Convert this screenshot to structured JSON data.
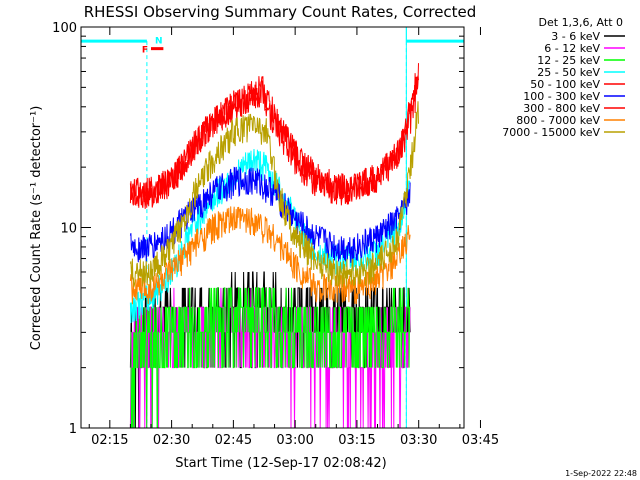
{
  "chart_data": {
    "type": "line",
    "title": "RHESSI Observing Summary Count Rates, Corrected",
    "xlabel": "Start Time (12-Sep-17 02:08:42)",
    "ylabel": "Corrected Count Rate (s⁻¹ detector⁻¹)",
    "yscale": "log",
    "ylim": [
      1,
      100
    ],
    "xlim_minutes": [
      8,
      101
    ],
    "x_tick_labels": [
      "02:15",
      "02:30",
      "02:45",
      "03:00",
      "03:15",
      "03:30",
      "03:45"
    ],
    "x_ticks_minutes": [
      15,
      30,
      45,
      60,
      75,
      90,
      105
    ],
    "y_tick_labels": [
      "1",
      "10",
      "100"
    ],
    "y_ticks": [
      1,
      10,
      100
    ],
    "legend_header": "Det 1,3,6, Att 0",
    "legend_placement": "right",
    "grid": false,
    "series": [
      {
        "name": "3 - 6 keV",
        "color": "#000000",
        "points": [
          [
            20,
            2
          ],
          [
            25,
            4
          ],
          [
            30,
            4
          ],
          [
            40,
            4
          ],
          [
            50,
            5
          ],
          [
            60,
            4
          ],
          [
            70,
            4
          ],
          [
            80,
            4
          ],
          [
            88,
            4
          ]
        ]
      },
      {
        "name": "6 - 12 keV",
        "color": "#ff00ff",
        "points": [
          [
            20,
            2
          ],
          [
            25,
            2.5
          ],
          [
            30,
            3
          ],
          [
            40,
            3.5
          ],
          [
            50,
            3.5
          ],
          [
            60,
            2.5
          ],
          [
            70,
            2.5
          ],
          [
            80,
            2
          ],
          [
            88,
            3
          ]
        ]
      },
      {
        "name": "12 - 25 keV",
        "color": "#00ff00",
        "points": [
          [
            20,
            2
          ],
          [
            25,
            2.5
          ],
          [
            30,
            3
          ],
          [
            40,
            3.5
          ],
          [
            50,
            4
          ],
          [
            60,
            3
          ],
          [
            70,
            3
          ],
          [
            80,
            3
          ],
          [
            88,
            4
          ]
        ]
      },
      {
        "name": "25 - 50 keV",
        "color": "#00ffff",
        "points": [
          [
            20,
            4
          ],
          [
            25,
            4.5
          ],
          [
            30,
            6
          ],
          [
            35,
            10
          ],
          [
            40,
            14
          ],
          [
            45,
            18
          ],
          [
            50,
            22
          ],
          [
            53,
            20
          ],
          [
            60,
            11
          ],
          [
            65,
            7.5
          ],
          [
            70,
            7
          ],
          [
            75,
            7
          ],
          [
            80,
            7.5
          ],
          [
            85,
            10
          ],
          [
            88,
            17
          ]
        ]
      },
      {
        "name": "50 - 100 keV",
        "color": "#ff0000",
        "points": [
          [
            20,
            15
          ],
          [
            25,
            15
          ],
          [
            30,
            17
          ],
          [
            35,
            25
          ],
          [
            40,
            34
          ],
          [
            45,
            41
          ],
          [
            50,
            47
          ],
          [
            52,
            50
          ],
          [
            55,
            36
          ],
          [
            60,
            24
          ],
          [
            65,
            18
          ],
          [
            70,
            16
          ],
          [
            75,
            16
          ],
          [
            80,
            18
          ],
          [
            85,
            24
          ],
          [
            88,
            40
          ],
          [
            90,
            60
          ]
        ]
      },
      {
        "name": "100 - 300 keV",
        "color": "#0000ff",
        "points": [
          [
            20,
            8
          ],
          [
            25,
            8
          ],
          [
            30,
            9.5
          ],
          [
            35,
            12
          ],
          [
            40,
            15
          ],
          [
            45,
            17
          ],
          [
            50,
            17.5
          ],
          [
            55,
            15
          ],
          [
            60,
            11
          ],
          [
            65,
            9
          ],
          [
            70,
            8
          ],
          [
            75,
            8
          ],
          [
            80,
            9
          ],
          [
            85,
            11
          ],
          [
            88,
            15
          ]
        ]
      },
      {
        "name": "300 - 800 keV",
        "color": "#ff0000",
        "points": [
          [
            20,
            15
          ],
          [
            25,
            15.5
          ],
          [
            30,
            17
          ],
          [
            35,
            25
          ],
          [
            40,
            34
          ],
          [
            45,
            40
          ],
          [
            50,
            46
          ],
          [
            52,
            48
          ],
          [
            55,
            33
          ],
          [
            60,
            22
          ],
          [
            65,
            17
          ],
          [
            70,
            15.5
          ],
          [
            75,
            16
          ],
          [
            80,
            18
          ],
          [
            85,
            23
          ],
          [
            88,
            35
          ],
          [
            90,
            55
          ]
        ]
      },
      {
        "name": "800 - 7000 keV",
        "color": "#ff8000",
        "points": [
          [
            20,
            5
          ],
          [
            25,
            5
          ],
          [
            30,
            6
          ],
          [
            35,
            8
          ],
          [
            40,
            10
          ],
          [
            45,
            11
          ],
          [
            50,
            11
          ],
          [
            55,
            9
          ],
          [
            60,
            6.5
          ],
          [
            65,
            5
          ],
          [
            70,
            5
          ],
          [
            75,
            5
          ],
          [
            80,
            5.5
          ],
          [
            85,
            7
          ],
          [
            88,
            9.5
          ]
        ]
      },
      {
        "name": "7000 - 15000 keV",
        "color": "#b8a000",
        "points": [
          [
            20,
            6
          ],
          [
            25,
            6
          ],
          [
            30,
            8
          ],
          [
            35,
            14
          ],
          [
            40,
            22
          ],
          [
            45,
            30
          ],
          [
            50,
            33
          ],
          [
            53,
            30
          ],
          [
            56,
            15
          ],
          [
            60,
            9
          ],
          [
            65,
            7
          ],
          [
            70,
            6
          ],
          [
            75,
            6
          ],
          [
            80,
            6.5
          ],
          [
            85,
            9
          ],
          [
            88,
            20
          ],
          [
            90,
            40
          ]
        ]
      }
    ],
    "flags": {
      "saa_color": "#00ffff",
      "f_label": "F",
      "n_label": "N",
      "f_color": "#ff0000",
      "n_color": "#00ffff",
      "saa_level": 85,
      "saa_segments": [
        [
          8,
          24
        ],
        [
          87,
          101
        ]
      ],
      "dashed_lines_minutes": [
        24,
        87,
        101
      ],
      "f_bar_minutes": [
        25,
        28
      ],
      "f_bar_level": 78
    }
  },
  "timestamp": "1-Sep-2022 22:48"
}
